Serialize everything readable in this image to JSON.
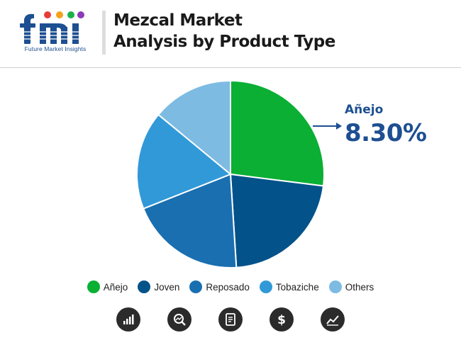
{
  "header": {
    "title_line1": "Mezcal Market",
    "title_line2": "Analysis by Product Type",
    "logo_text": "fmi",
    "logo_caption": "Future Market Insights"
  },
  "callout": {
    "label": "Añejo",
    "value": "8.30%"
  },
  "colors": {
    "anejo": "#0aaf34",
    "joven": "#03528a",
    "reposado": "#1a6fb0",
    "tobaziche": "#3199d8",
    "others": "#7dbbe3",
    "brand_blue": "#1d4f91"
  },
  "chart_data": {
    "type": "pie",
    "title": "Mezcal Market Analysis by Product Type",
    "start_angle_deg": 0,
    "direction": "clockwise",
    "series": [
      {
        "name": "Añejo",
        "value": 27,
        "color": "#0aaf34"
      },
      {
        "name": "Joven",
        "value": 22,
        "color": "#03528a"
      },
      {
        "name": "Reposado",
        "value": 20,
        "color": "#1a6fb0"
      },
      {
        "name": "Tobaziche",
        "value": 17,
        "color": "#3199d8"
      },
      {
        "name": "Others",
        "value": 14,
        "color": "#7dbbe3"
      }
    ],
    "callout": {
      "series": "Añejo",
      "value": "8.30%"
    },
    "legend": {
      "position": "bottom"
    }
  },
  "legend": {
    "items": [
      {
        "label": "Añejo",
        "color": "#0aaf34"
      },
      {
        "label": "Joven",
        "color": "#03528a"
      },
      {
        "label": "Reposado",
        "color": "#1a6fb0"
      },
      {
        "label": "Tobaziche",
        "color": "#3199d8"
      },
      {
        "label": "Others",
        "color": "#7dbbe3"
      }
    ]
  },
  "footer_icons": [
    "bar-chart-growth-icon",
    "magnifier-trend-icon",
    "report-document-icon",
    "dollar-icon",
    "line-chart-icon"
  ]
}
